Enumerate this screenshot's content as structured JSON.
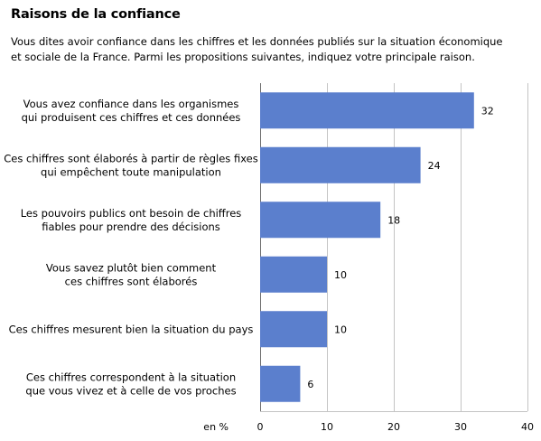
{
  "chart_data": {
    "type": "bar",
    "orientation": "horizontal",
    "title": "Raisons de la confiance",
    "subtitle_lines": [
      "Vous dites avoir confiance dans les chiffres et les données publiés sur la situation économique",
      "et sociale de la France. Parmi les propositions suivantes, indiquez votre principale raison."
    ],
    "categories": [
      [
        "Vous avez confiance dans les organismes",
        "qui produisent ces chiffres et ces données"
      ],
      [
        "Ces chiffres sont élaborés à partir de règles fixes",
        "qui empêchent toute manipulation"
      ],
      [
        "Les pouvoirs publics ont besoin de chiffres",
        "fiables pour prendre des décisions"
      ],
      [
        "Vous savez plutôt bien comment",
        "ces chiffres sont élaborés"
      ],
      [
        "Ces chiffres mesurent bien la situation du pays"
      ],
      [
        "Ces chiffres correspondent à la situation",
        "que vous vivez et à celle de vos proches"
      ]
    ],
    "values": [
      32,
      24,
      18,
      10,
      10,
      6
    ],
    "xlim": [
      0,
      40
    ],
    "xticks": [
      0,
      10,
      20,
      30,
      40
    ],
    "xlabel": "en %",
    "grid": true,
    "bar_color": "#5b7fcd"
  }
}
